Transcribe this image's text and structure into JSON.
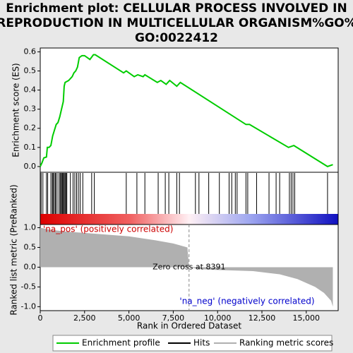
{
  "chart_data": [
    {
      "type": "line",
      "title": [
        "Enrichment plot: CELLULAR PROCESS INVOLVED IN",
        "REPRODUCTION IN MULTICELLULAR ORGANISM%GO%",
        "GO:0022412"
      ],
      "ylabel": "Enrichment score (ES)",
      "xlim": [
        0,
        16800
      ],
      "ylim": [
        -0.03,
        0.62
      ],
      "yticks": [
        {
          "value": 0,
          "label": "0.0"
        },
        {
          "value": 0.1,
          "label": "0.1"
        },
        {
          "value": 0.2,
          "label": "0.2"
        },
        {
          "value": 0.3,
          "label": "0.3"
        },
        {
          "value": 0.4,
          "label": "0.4"
        },
        {
          "value": 0.5,
          "label": "0.5"
        },
        {
          "value": 0.6,
          "label": "0.6"
        }
      ],
      "series": [
        {
          "name": "Enrichment profile",
          "color": "#00cc00",
          "x": [
            0,
            100,
            200,
            350,
            400,
            500,
            600,
            700,
            800,
            900,
            1000,
            1100,
            1200,
            1300,
            1350,
            1400,
            1600,
            1800,
            1900,
            2000,
            2100,
            2200,
            2350,
            2500,
            2800,
            3000,
            3100,
            4700,
            4850,
            5300,
            5500,
            5800,
            5900,
            6600,
            6800,
            7100,
            7300,
            7700,
            7900,
            11600,
            11800,
            14000,
            14300,
            16200,
            16500
          ],
          "y": [
            0,
            0.02,
            0.045,
            0.05,
            0.1,
            0.1,
            0.11,
            0.16,
            0.19,
            0.22,
            0.23,
            0.26,
            0.3,
            0.34,
            0.42,
            0.44,
            0.45,
            0.47,
            0.49,
            0.5,
            0.52,
            0.57,
            0.58,
            0.58,
            0.56,
            0.585,
            0.585,
            0.49,
            0.5,
            0.47,
            0.48,
            0.47,
            0.48,
            0.44,
            0.45,
            0.43,
            0.45,
            0.42,
            0.44,
            0.22,
            0.22,
            0.1,
            0.11,
            0.0,
            0.01
          ]
        }
      ]
    },
    {
      "type": "hits",
      "xlim": [
        0,
        16800
      ],
      "series": [
        {
          "name": "Hits",
          "color": "#000000",
          "x": [
            50,
            150,
            350,
            420,
            600,
            680,
            720,
            780,
            850,
            900,
            1000,
            1100,
            1150,
            1200,
            1250,
            1300,
            1350,
            1400,
            1450,
            1500,
            1700,
            1850,
            1950,
            2050,
            2150,
            2250,
            2400,
            2900,
            3050,
            4850,
            5450,
            5900,
            6650,
            7050,
            7250,
            7700,
            7850,
            8750,
            8950,
            9500,
            10100,
            10650,
            10800,
            11000,
            11100,
            11600,
            11700,
            12200,
            12900,
            13300,
            13500,
            14050,
            14150,
            14250,
            14350,
            16200
          ]
        }
      ]
    },
    {
      "type": "area",
      "ylabel": "Ranked list metric (PreRanked)",
      "xlabel": "Rank in Ordered Dataset",
      "xlim": [
        0,
        16800
      ],
      "ylim": [
        -1.1,
        1.08
      ],
      "xticks": [
        0,
        {
          "value": 2500,
          "label": "2,500"
        },
        {
          "value": 5000,
          "label": "5,000"
        },
        {
          "value": 7500,
          "label": "7,500"
        },
        {
          "value": 10000,
          "label": "10,000"
        },
        {
          "value": 12500,
          "label": "12,500"
        },
        {
          "value": 15000,
          "label": "15,000"
        }
      ],
      "yticks": [
        {
          "value": 1,
          "label": "1.0"
        },
        {
          "value": 0.5,
          "label": "0.5"
        },
        {
          "value": 0,
          "label": "0.0"
        },
        {
          "value": -0.5,
          "label": "-0.5"
        },
        {
          "value": -1,
          "label": "-1.0"
        }
      ],
      "zero_cross": 8391,
      "annotations": [
        "'na_pos' (positively correlated)",
        "Zero cross at 8391",
        "'na_neg' (negatively correlated)"
      ],
      "series": [
        {
          "name": "Ranking metric scores",
          "color": "#b0b0b0",
          "x": [
            0,
            500,
            1500,
            3000,
            5000,
            6500,
            7500,
            8300,
            8391,
            9000,
            10000,
            12000,
            13500,
            14500,
            15500,
            16000,
            16400,
            16500
          ],
          "y": [
            1.0,
            0.95,
            0.9,
            0.85,
            0.78,
            0.68,
            0.6,
            0.5,
            0,
            -0.05,
            -0.07,
            -0.1,
            -0.18,
            -0.3,
            -0.5,
            -0.65,
            -0.85,
            -1.0
          ]
        }
      ]
    }
  ]
}
